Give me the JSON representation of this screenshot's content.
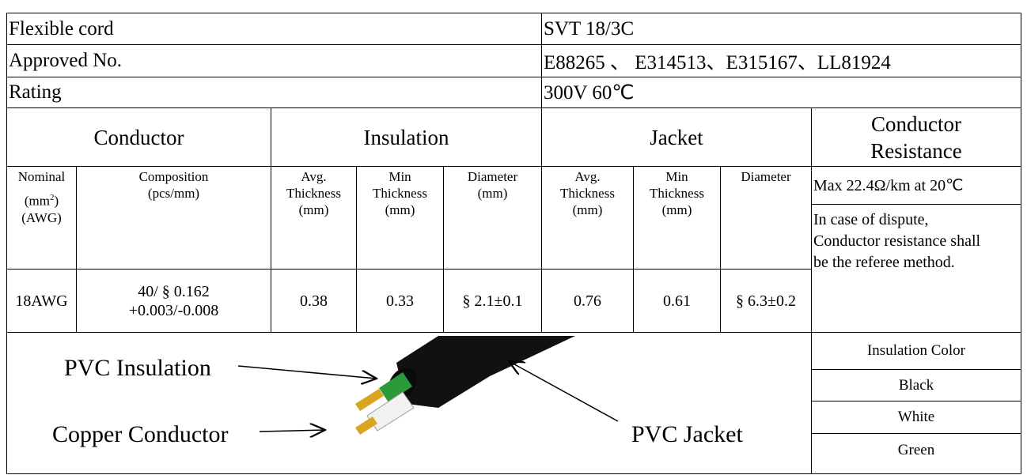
{
  "spec": [
    {
      "label": "Flexible cord",
      "value": "SVT 18/3C"
    },
    {
      "label": "Approved No.",
      "value": "E88265 、 E314513、E315167、LL81924"
    },
    {
      "label": "Rating",
      "value": "300V  60℃"
    }
  ],
  "groups": [
    "Conductor",
    "Insulation",
    "Jacket",
    "Conductor Resistance"
  ],
  "subheaders": {
    "nominal": {
      "line1": "Nominal",
      "unit": "(mm",
      "sup": "2",
      "unit_close": ")",
      "line3": "(AWG)"
    },
    "composition": [
      "Composition",
      "(pcs/mm)"
    ],
    "ins_avg": [
      "Avg.",
      "Thickness",
      "(mm)"
    ],
    "ins_min": [
      "Min",
      "Thickness",
      "(mm)"
    ],
    "ins_dia": [
      "Diameter",
      "(mm)"
    ],
    "jac_avg": [
      "Avg.",
      "Thickness",
      "(mm)"
    ],
    "jac_min": [
      "Min",
      "Thickness",
      "(mm)"
    ],
    "jac_dia": [
      "Diameter"
    ]
  },
  "row": {
    "nominal": "18AWG",
    "composition": [
      "40/ § 0.162",
      "+0.003/-0.008"
    ],
    "ins_avg": "0.38",
    "ins_min": "0.33",
    "ins_dia": "§ 2.1±0.1",
    "jac_avg": "0.76",
    "jac_min": "0.61",
    "jac_dia": "§ 6.3±0.2"
  },
  "resistance": {
    "max": "Max 22.4Ω/km at 20℃",
    "note": "In case of dispute, Conductor resistance shall be the referee method."
  },
  "diagram": {
    "insulation": "PVC Insulation",
    "conductor": "Copper Conductor",
    "jacket": "PVC Jacket"
  },
  "colors": {
    "header": "Insulation Color",
    "items": [
      "Black",
      "White",
      "Green"
    ]
  }
}
